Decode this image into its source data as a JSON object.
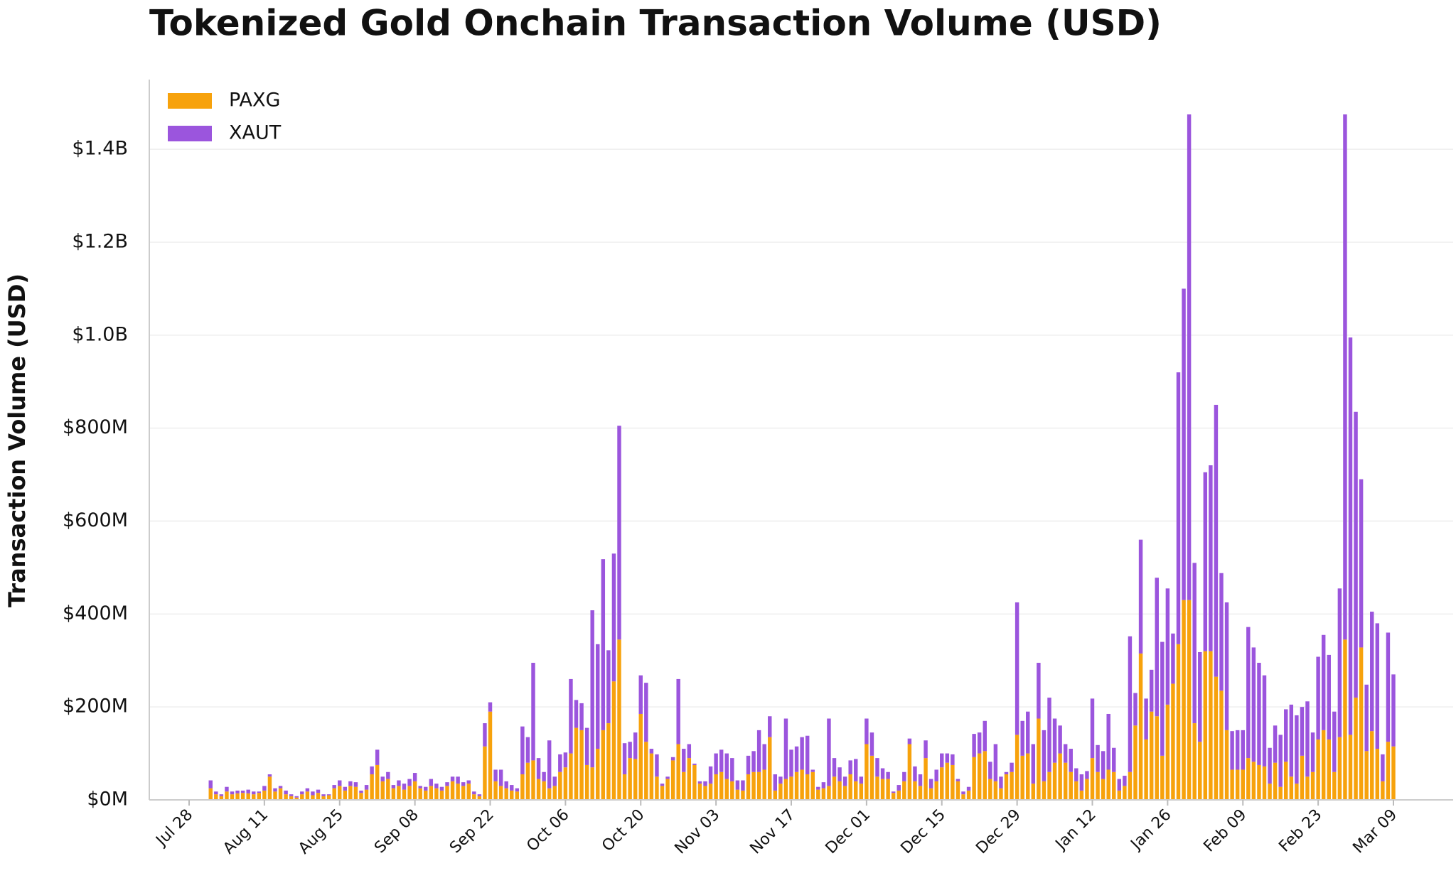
{
  "chart_data": {
    "type": "stacked_bar",
    "title": "Tokenized Gold Onchain Transaction Volume (USD)",
    "y_label": "Transaction Volume (USD)",
    "legend": "upper left",
    "grid": true,
    "categories": [
      "Jul 28",
      null,
      null,
      null,
      null,
      null,
      null,
      null,
      null,
      null,
      null,
      null,
      null,
      null,
      "Aug 11",
      null,
      null,
      null,
      null,
      null,
      null,
      null,
      null,
      null,
      null,
      null,
      null,
      null,
      "Aug 25",
      null,
      null,
      null,
      null,
      null,
      null,
      null,
      null,
      null,
      null,
      null,
      null,
      null,
      "Sep 08",
      null,
      null,
      null,
      null,
      null,
      null,
      null,
      null,
      null,
      null,
      null,
      null,
      null,
      "Sep 22",
      null,
      null,
      null,
      null,
      null,
      null,
      null,
      null,
      null,
      null,
      null,
      null,
      null,
      "Oct 06",
      null,
      null,
      null,
      null,
      null,
      null,
      null,
      null,
      null,
      null,
      null,
      null,
      null,
      "Oct 20",
      null,
      null,
      null,
      null,
      null,
      null,
      null,
      null,
      null,
      null,
      null,
      null,
      null,
      "Nov 03",
      null,
      null,
      null,
      null,
      null,
      null,
      null,
      null,
      null,
      null,
      null,
      null,
      null,
      "Nov 17",
      null,
      null,
      null,
      null,
      null,
      null,
      null,
      null,
      null,
      null,
      null,
      null,
      null,
      "Dec 01",
      null,
      null,
      null,
      null,
      null,
      null,
      null,
      null,
      null,
      null,
      null,
      null,
      null,
      "Dec 15",
      null,
      null,
      null,
      null,
      null,
      null,
      null,
      null,
      null,
      null,
      null,
      null,
      null,
      "Dec 29",
      null,
      null,
      null,
      null,
      null,
      null,
      null,
      null,
      null,
      null,
      null,
      null,
      null,
      "Jan 12",
      null,
      null,
      null,
      null,
      null,
      null,
      null,
      null,
      null,
      null,
      null,
      null,
      null,
      "Jan 26",
      null,
      null,
      null,
      null,
      null,
      null,
      null,
      null,
      null,
      null,
      null,
      null,
      null,
      "Feb 09",
      null,
      null,
      null,
      null,
      null,
      null,
      null,
      null,
      null,
      null,
      null,
      null,
      null,
      "Feb 23",
      null,
      null,
      null,
      null,
      null,
      null,
      null,
      null,
      null,
      null,
      null,
      null,
      null,
      "Mar 09"
    ],
    "series": [
      {
        "name": "PAXG",
        "color": "#f7a20c",
        "values": [
          null,
          null,
          null,
          null,
          25000000.0,
          12000000.0,
          8000000.0,
          18000000.0,
          12000000.0,
          14000000.0,
          15000000.0,
          14000000.0,
          12000000.0,
          15000000.0,
          20000000.0,
          50000000.0,
          18000000.0,
          25000000.0,
          12000000.0,
          8000000.0,
          5000000.0,
          12000000.0,
          18000000.0,
          10000000.0,
          15000000.0,
          8000000.0,
          10000000.0,
          25000000.0,
          30000000.0,
          20000000.0,
          30000000.0,
          28000000.0,
          15000000.0,
          22000000.0,
          55000000.0,
          75000000.0,
          40000000.0,
          45000000.0,
          25000000.0,
          30000000.0,
          22000000.0,
          30000000.0,
          40000000.0,
          25000000.0,
          20000000.0,
          30000000.0,
          25000000.0,
          20000000.0,
          30000000.0,
          40000000.0,
          35000000.0,
          30000000.0,
          35000000.0,
          12000000.0,
          8000000.0,
          115000000.0,
          190000000.0,
          40000000.0,
          30000000.0,
          25000000.0,
          20000000.0,
          18000000.0,
          55000000.0,
          80000000.0,
          85000000.0,
          45000000.0,
          40000000.0,
          25000000.0,
          30000000.0,
          60000000.0,
          70000000.0,
          100000000.0,
          155000000.0,
          150000000.0,
          75000000.0,
          70000000.0,
          110000000.0,
          150000000.0,
          165000000.0,
          255000000.0,
          345000000.0,
          55000000.0,
          90000000.0,
          88000000.0,
          185000000.0,
          125000000.0,
          100000000.0,
          50000000.0,
          30000000.0,
          45000000.0,
          85000000.0,
          120000000.0,
          60000000.0,
          90000000.0,
          75000000.0,
          35000000.0,
          30000000.0,
          35000000.0,
          55000000.0,
          60000000.0,
          45000000.0,
          40000000.0,
          22000000.0,
          20000000.0,
          55000000.0,
          60000000.0,
          60000000.0,
          65000000.0,
          135000000.0,
          20000000.0,
          35000000.0,
          45000000.0,
          50000000.0,
          60000000.0,
          65000000.0,
          55000000.0,
          60000000.0,
          22000000.0,
          25000000.0,
          30000000.0,
          50000000.0,
          40000000.0,
          30000000.0,
          55000000.0,
          40000000.0,
          35000000.0,
          120000000.0,
          95000000.0,
          50000000.0,
          45000000.0,
          45000000.0,
          15000000.0,
          20000000.0,
          40000000.0,
          120000000.0,
          40000000.0,
          30000000.0,
          90000000.0,
          25000000.0,
          40000000.0,
          70000000.0,
          80000000.0,
          75000000.0,
          40000000.0,
          12000000.0,
          20000000.0,
          92000000.0,
          100000000.0,
          105000000.0,
          45000000.0,
          40000000.0,
          25000000.0,
          55000000.0,
          60000000.0,
          140000000.0,
          95000000.0,
          100000000.0,
          35000000.0,
          175000000.0,
          40000000.0,
          60000000.0,
          80000000.0,
          100000000.0,
          80000000.0,
          60000000.0,
          40000000.0,
          20000000.0,
          45000000.0,
          90000000.0,
          60000000.0,
          45000000.0,
          65000000.0,
          60000000.0,
          20000000.0,
          30000000.0,
          60000000.0,
          160000000.0,
          315000000.0,
          130000000.0,
          190000000.0,
          180000000.0,
          95000000.0,
          205000000.0,
          250000000.0,
          335000000.0,
          430000000.0,
          430000000.0,
          165000000.0,
          125000000.0,
          320000000.0,
          320000000.0,
          265000000.0,
          235000000.0,
          150000000.0,
          65000000.0,
          65000000.0,
          65000000.0,
          90000000.0,
          82000000.0,
          75000000.0,
          72000000.0,
          35000000.0,
          80000000.0,
          28000000.0,
          82000000.0,
          50000000.0,
          35000000.0,
          95000000.0,
          50000000.0,
          60000000.0,
          130000000.0,
          150000000.0,
          130000000.0,
          60000000.0,
          135000000.0,
          345000000.0,
          140000000.0,
          220000000.0,
          328000000.0,
          105000000.0,
          148000000.0,
          110000000.0,
          40000000.0,
          125000000.0,
          115000000.0
        ]
      },
      {
        "name": "XAUT",
        "color": "#9b55dd",
        "values": [
          null,
          null,
          null,
          null,
          17000000.0,
          6000000.0,
          4000000.0,
          10000000.0,
          6000000.0,
          6000000.0,
          5000000.0,
          8000000.0,
          6000000.0,
          3000000.0,
          10000000.0,
          5000000.0,
          7000000.0,
          5000000.0,
          8000000.0,
          4000000.0,
          3000000.0,
          6000000.0,
          7000000.0,
          8000000.0,
          7000000.0,
          4000000.0,
          2000000.0,
          7000000.0,
          12000000.0,
          8000000.0,
          10000000.0,
          10000000.0,
          5000000.0,
          10000000.0,
          17000000.0,
          33000000.0,
          10000000.0,
          15000000.0,
          7000000.0,
          12000000.0,
          13000000.0,
          15000000.0,
          18000000.0,
          5000000.0,
          8000000.0,
          15000000.0,
          10000000.0,
          8000000.0,
          8000000.0,
          10000000.0,
          15000000.0,
          8000000.0,
          7000000.0,
          6000000.0,
          4000000.0,
          50000000.0,
          20000000.0,
          25000000.0,
          35000000.0,
          15000000.0,
          12000000.0,
          7000000.0,
          103000000.0,
          55000000.0,
          210000000.0,
          45000000.0,
          20000000.0,
          103000000.0,
          20000000.0,
          38000000.0,
          32000000.0,
          160000000.0,
          60000000.0,
          58000000.0,
          80000000.0,
          338000000.0,
          225000000.0,
          368000000.0,
          157000000.0,
          275000000.0,
          460000000.0,
          67000000.0,
          35000000.0,
          57000000.0,
          83000000.0,
          127000000.0,
          10000000.0,
          48000000.0,
          5000000.0,
          5000000.0,
          7000000.0,
          140000000.0,
          50000000.0,
          30000000.0,
          3000000.0,
          5000000.0,
          10000000.0,
          37000000.0,
          45000000.0,
          48000000.0,
          55000000.0,
          50000000.0,
          20000000.0,
          22000000.0,
          40000000.0,
          45000000.0,
          90000000.0,
          55000000.0,
          45000000.0,
          35000000.0,
          15000000.0,
          130000000.0,
          58000000.0,
          55000000.0,
          70000000.0,
          83000000.0,
          5000000.0,
          6000000.0,
          13000000.0,
          145000000.0,
          40000000.0,
          30000000.0,
          20000000.0,
          30000000.0,
          48000000.0,
          15000000.0,
          55000000.0,
          50000000.0,
          40000000.0,
          23000000.0,
          15000000.0,
          3000000.0,
          12000000.0,
          20000000.0,
          12000000.0,
          32000000.0,
          25000000.0,
          38000000.0,
          20000000.0,
          25000000.0,
          30000000.0,
          20000000.0,
          23000000.0,
          5000000.0,
          6000000.0,
          8000000.0,
          50000000.0,
          45000000.0,
          65000000.0,
          37000000.0,
          80000000.0,
          25000000.0,
          5000000.0,
          20000000.0,
          285000000.0,
          75000000.0,
          90000000.0,
          85000000.0,
          120000000.0,
          110000000.0,
          160000000.0,
          95000000.0,
          60000000.0,
          40000000.0,
          50000000.0,
          28000000.0,
          35000000.0,
          17000000.0,
          128000000.0,
          58000000.0,
          60000000.0,
          120000000.0,
          52000000.0,
          25000000.0,
          22000000.0,
          292000000.0,
          70000000.0,
          245000000.0,
          88000000.0,
          90000000.0,
          298000000.0,
          245000000.0,
          250000000.0,
          108000000.0,
          585000000.0,
          670000000.0,
          1045000000.0,
          345000000.0,
          193000000.0,
          385000000.0,
          400000000.0,
          585000000.0,
          253000000.0,
          275000000.0,
          83000000.0,
          85000000.0,
          85000000.0,
          282000000.0,
          246000000.0,
          220000000.0,
          196000000.0,
          77000000.0,
          80000000.0,
          112000000.0,
          113000000.0,
          155000000.0,
          147000000.0,
          105000000.0,
          162000000.0,
          85000000.0,
          178000000.0,
          205000000.0,
          182000000.0,
          130000000.0,
          320000000.0,
          1130000000.0,
          855000000.0,
          615000000.0,
          362000000.0,
          143000000.0,
          257000000.0,
          270000000.0,
          58000000.0,
          235000000.0,
          155000000.0
        ]
      }
    ],
    "ylim": [
      0,
      1550000000
    ],
    "yticks": [
      {
        "value": 0,
        "label": "$0M"
      },
      {
        "value": 200000000,
        "label": "$200M"
      },
      {
        "value": 400000000,
        "label": "$400M"
      },
      {
        "value": 600000000,
        "label": "$600M"
      },
      {
        "value": 800000000,
        "label": "$800M"
      },
      {
        "value": 1000000000,
        "label": "$1.0B"
      },
      {
        "value": 1200000000,
        "label": "$1.2B"
      },
      {
        "value": 1400000000,
        "label": "$1.4B"
      }
    ]
  }
}
